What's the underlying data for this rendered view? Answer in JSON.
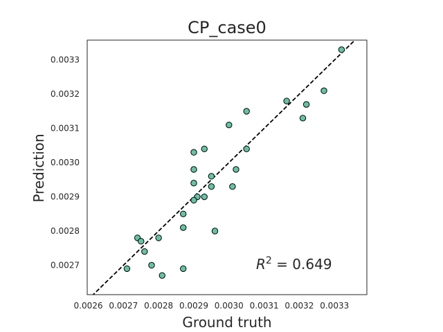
{
  "chart_data": {
    "type": "scatter",
    "title": "CP_case0",
    "xlabel": "Ground truth",
    "ylabel": "Prediction",
    "xlim": [
      0.002597,
      0.003392
    ],
    "ylim": [
      0.002614,
      0.003358
    ],
    "xticks": [
      "0.0026",
      "0.0027",
      "0.0028",
      "0.0029",
      "0.0030",
      "0.0031",
      "0.0032",
      "0.0033"
    ],
    "yticks": [
      "0.0027",
      "0.0028",
      "0.0029",
      "0.0030",
      "0.0031",
      "0.0032",
      "0.0033"
    ],
    "grid": false,
    "annotation": {
      "label": "R² = 0.649",
      "base": "R",
      "exponent": "2",
      "value": " = 0.649"
    },
    "reference_line": {
      "style": "dashed",
      "color": "#000000",
      "slope": 1,
      "intercept": 0
    },
    "marker_color": "#66c2a5",
    "marker_edge_color": "#000000",
    "points": [
      {
        "x": 0.00332,
        "y": 0.00333
      },
      {
        "x": 0.00327,
        "y": 0.00321
      },
      {
        "x": 0.00322,
        "y": 0.00317
      },
      {
        "x": 0.00321,
        "y": 0.00313
      },
      {
        "x": 0.00305,
        "y": 0.00315
      },
      {
        "x": 0.003,
        "y": 0.00311
      },
      {
        "x": 0.00305,
        "y": 0.00304
      },
      {
        "x": 0.00293,
        "y": 0.00304
      },
      {
        "x": 0.0029,
        "y": 0.00303
      },
      {
        "x": 0.0029,
        "y": 0.00298
      },
      {
        "x": 0.00302,
        "y": 0.00298
      },
      {
        "x": 0.00295,
        "y": 0.00296
      },
      {
        "x": 0.0029,
        "y": 0.00294
      },
      {
        "x": 0.00295,
        "y": 0.00293
      },
      {
        "x": 0.00301,
        "y": 0.00293
      },
      {
        "x": 0.00293,
        "y": 0.0029
      },
      {
        "x": 0.00291,
        "y": 0.0029
      },
      {
        "x": 0.0029,
        "y": 0.00289
      },
      {
        "x": 0.00287,
        "y": 0.00285
      },
      {
        "x": 0.00287,
        "y": 0.00281
      },
      {
        "x": 0.00296,
        "y": 0.0028
      },
      {
        "x": 0.0028,
        "y": 0.00278
      },
      {
        "x": 0.00274,
        "y": 0.00278
      },
      {
        "x": 0.00275,
        "y": 0.00277
      },
      {
        "x": 0.00276,
        "y": 0.00274
      },
      {
        "x": 0.00278,
        "y": 0.0027
      },
      {
        "x": 0.00271,
        "y": 0.00269
      },
      {
        "x": 0.00287,
        "y": 0.00269
      },
      {
        "x": 0.00281,
        "y": 0.00267
      },
      {
        "x": 0.003164,
        "y": 0.00318
      }
    ]
  }
}
